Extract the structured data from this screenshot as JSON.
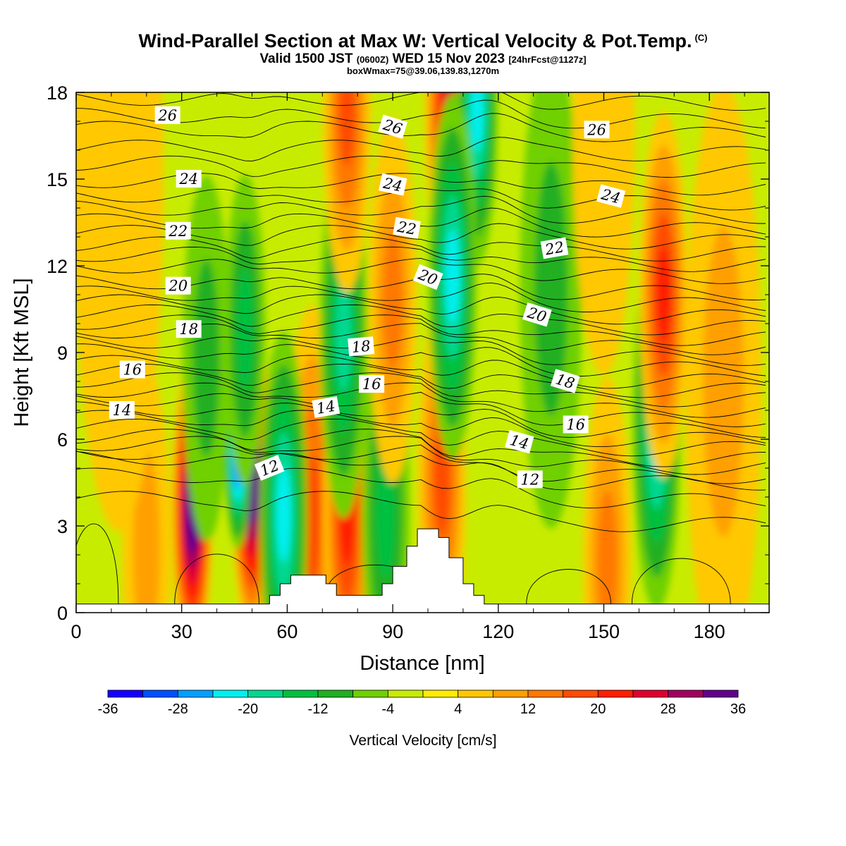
{
  "header": {
    "title": "Wind-Parallel Section at Max W: Vertical Velocity & Pot.Temp.",
    "copyright": "(C)",
    "valid_prefix": "Valid 1500 JST",
    "valid_utc": "(0600Z)",
    "valid_date": "WED 15 Nov 2023",
    "forecast": "[24hrFcst@1127z]",
    "box_info": "boxWmax=75@39.06,139.83,1270m"
  },
  "chart_data": {
    "type": "heatmap",
    "xlabel": "Distance [nm]",
    "ylabel": "Height [Kft MSL]",
    "xlim": [
      0,
      197
    ],
    "ylim": [
      0,
      18
    ],
    "x_ticks": [
      0,
      30,
      60,
      90,
      120,
      150,
      180
    ],
    "y_ticks": [
      0,
      3,
      6,
      9,
      12,
      15,
      18
    ],
    "colorbar": {
      "label": "Vertical Velocity [cm/s]",
      "tick_labels": [
        "-36",
        "-28",
        "-20",
        "-12",
        "-4",
        "4",
        "12",
        "20",
        "28",
        "36"
      ],
      "levels": [
        -36,
        -32,
        -28,
        -24,
        -20,
        -16,
        -12,
        -8,
        -4,
        0,
        4,
        8,
        12,
        16,
        20,
        24,
        28,
        32,
        36
      ],
      "colors": [
        "#1400ff",
        "#0050ff",
        "#00a0ff",
        "#00f0f0",
        "#00d890",
        "#00c040",
        "#20b020",
        "#70d000",
        "#c8ec00",
        "#ffec00",
        "#ffc800",
        "#ffa000",
        "#ff7800",
        "#ff4c00",
        "#ff1e00",
        "#e00030",
        "#a00060",
        "#60008c"
      ]
    },
    "velocity_cells": [
      {
        "x": 33,
        "y": 3.6,
        "w": 5,
        "v": 34
      },
      {
        "x": 50,
        "y": 4.6,
        "w": 5,
        "v": 34
      },
      {
        "x": 46,
        "y": 5.6,
        "w": 3,
        "v": -26
      },
      {
        "x": 67,
        "y": 3.3,
        "w": 7,
        "v": 16
      },
      {
        "x": 77,
        "y": 3.3,
        "w": 6,
        "v": 20
      },
      {
        "x": 59,
        "y": 3.4,
        "w": 6,
        "v": -18
      },
      {
        "x": 88,
        "y": 3.6,
        "w": 6,
        "v": -12
      },
      {
        "x": 104,
        "y": 4.6,
        "w": 6,
        "v": 16
      },
      {
        "x": 106,
        "y": 17.4,
        "w": 6,
        "v": 22
      },
      {
        "x": 114,
        "y": 17.4,
        "w": 5,
        "v": -20
      },
      {
        "x": 165,
        "y": 6.4,
        "w": 6,
        "v": -20
      },
      {
        "x": 167,
        "y": 11.0,
        "w": 6,
        "v": 20
      },
      {
        "x": 76,
        "y": 9.6,
        "w": 6,
        "v": -16
      },
      {
        "x": 107,
        "y": 11.6,
        "w": 6,
        "v": -20
      },
      {
        "x": 90,
        "y": 10.8,
        "w": 6,
        "v": 10
      },
      {
        "x": 77,
        "y": 17.4,
        "w": 6,
        "v": 14
      },
      {
        "x": 48,
        "y": 9.8,
        "w": 5,
        "v": -10
      },
      {
        "x": 37,
        "y": 8.8,
        "w": 6,
        "v": -8
      },
      {
        "x": 151,
        "y": 1.8,
        "w": 6,
        "v": 10
      },
      {
        "x": 135,
        "y": 11.2,
        "w": 8,
        "v": -6
      },
      {
        "x": 184,
        "y": 8.0,
        "w": 10,
        "v": 7
      },
      {
        "x": 20,
        "y": 2.2,
        "w": 6,
        "v": 6
      },
      {
        "x": 12,
        "y": 15.0,
        "w": 12,
        "v": 4
      },
      {
        "x": 150,
        "y": 16.5,
        "w": 8,
        "v": 5
      }
    ],
    "terrain": [
      [
        0,
        0.3
      ],
      [
        55,
        0.3
      ],
      [
        55,
        0.6
      ],
      [
        58,
        0.6
      ],
      [
        58,
        1.0
      ],
      [
        61,
        1.0
      ],
      [
        61,
        1.3
      ],
      [
        71,
        1.3
      ],
      [
        71,
        1.0
      ],
      [
        74,
        1.0
      ],
      [
        74,
        0.6
      ],
      [
        87,
        0.6
      ],
      [
        87,
        1.0
      ],
      [
        90,
        1.0
      ],
      [
        90,
        1.6
      ],
      [
        94,
        1.6
      ],
      [
        94,
        2.3
      ],
      [
        97,
        2.3
      ],
      [
        97,
        2.9
      ],
      [
        103,
        2.9
      ],
      [
        103,
        2.6
      ],
      [
        106,
        2.6
      ],
      [
        106,
        1.9
      ],
      [
        110,
        1.9
      ],
      [
        110,
        1.0
      ],
      [
        113,
        1.0
      ],
      [
        113,
        0.6
      ],
      [
        116,
        0.6
      ],
      [
        116,
        0.3
      ],
      [
        197,
        0.3
      ]
    ],
    "theta_labels": [
      {
        "text": "26",
        "x": 26,
        "y": 17.2,
        "angle": 0
      },
      {
        "text": "24",
        "x": 32,
        "y": 15.0,
        "angle": 0
      },
      {
        "text": "22",
        "x": 29,
        "y": 13.2,
        "angle": 0
      },
      {
        "text": "20",
        "x": 29,
        "y": 11.3,
        "angle": 0
      },
      {
        "text": "18",
        "x": 32,
        "y": 9.8,
        "angle": 0
      },
      {
        "text": "16",
        "x": 16,
        "y": 8.4,
        "angle": 0
      },
      {
        "text": "14",
        "x": 13,
        "y": 7.0,
        "angle": 0
      },
      {
        "text": "12",
        "x": 55,
        "y": 5.0,
        "angle": -22
      },
      {
        "text": "14",
        "x": 71,
        "y": 7.1,
        "angle": -10
      },
      {
        "text": "16",
        "x": 84,
        "y": 7.9,
        "angle": 0
      },
      {
        "text": "18",
        "x": 81,
        "y": 9.2,
        "angle": -5
      },
      {
        "text": "20",
        "x": 100,
        "y": 11.6,
        "angle": 22
      },
      {
        "text": "22",
        "x": 94,
        "y": 13.3,
        "angle": 10
      },
      {
        "text": "24",
        "x": 90,
        "y": 14.8,
        "angle": 12
      },
      {
        "text": "26",
        "x": 90,
        "y": 16.8,
        "angle": 17
      },
      {
        "text": "12",
        "x": 129,
        "y": 4.6,
        "angle": 0
      },
      {
        "text": "14",
        "x": 126,
        "y": 5.9,
        "angle": 15
      },
      {
        "text": "16",
        "x": 142,
        "y": 6.5,
        "angle": 0
      },
      {
        "text": "18",
        "x": 139,
        "y": 8.0,
        "angle": 17
      },
      {
        "text": "20",
        "x": 131,
        "y": 10.3,
        "angle": 17
      },
      {
        "text": "22",
        "x": 136,
        "y": 12.6,
        "angle": -10
      },
      {
        "text": "24",
        "x": 152,
        "y": 14.4,
        "angle": 15
      },
      {
        "text": "26",
        "x": 148,
        "y": 16.7,
        "angle": 0
      }
    ]
  }
}
